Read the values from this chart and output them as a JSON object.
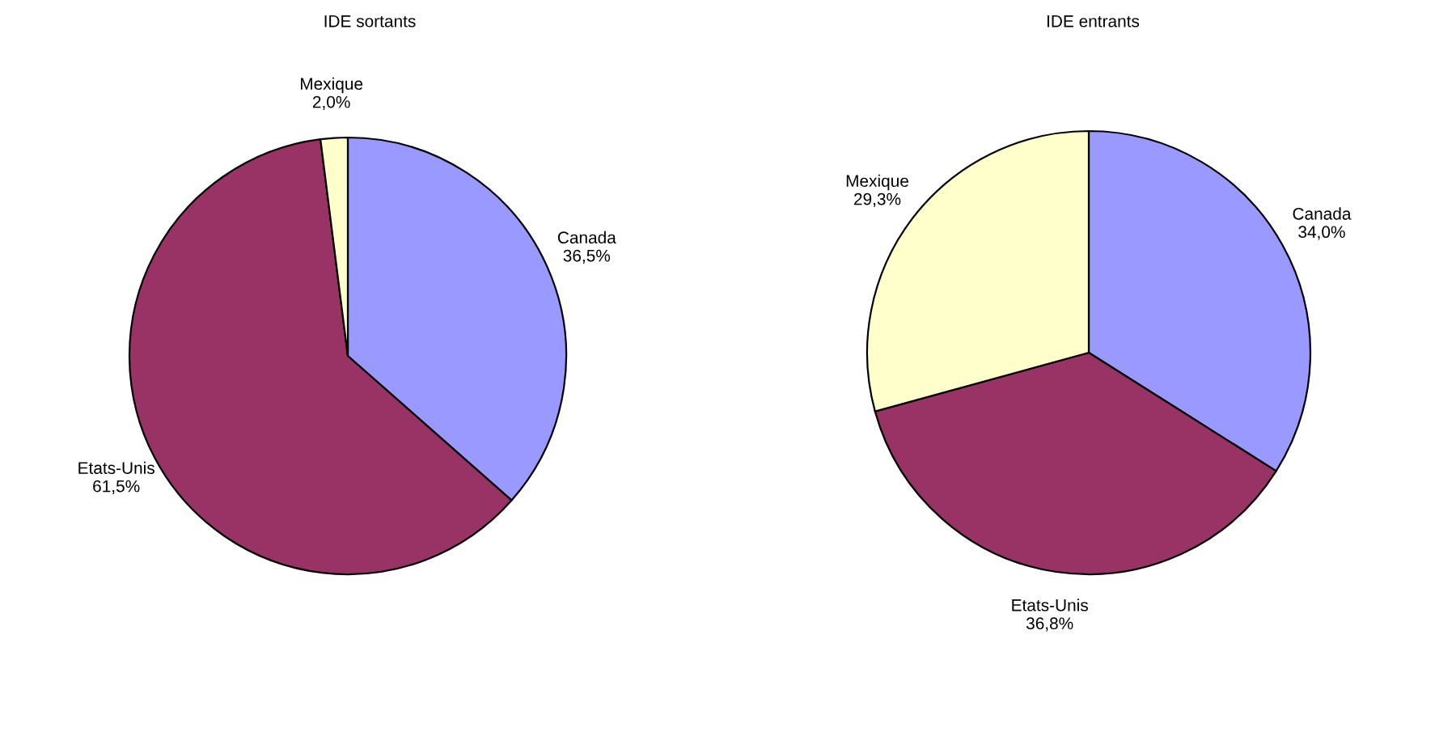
{
  "chart_data": [
    {
      "type": "pie",
      "title": "IDE sortants",
      "categories": [
        "Canada",
        "Etats-Unis",
        "Mexique"
      ],
      "values": [
        36.5,
        61.5,
        2.0
      ],
      "value_labels": [
        "36,5%",
        "61,5%",
        "2,0%"
      ],
      "colors": [
        "#9999ff",
        "#993366",
        "#ffffcc"
      ],
      "legend": false
    },
    {
      "type": "pie",
      "title": "IDE entrants",
      "categories": [
        "Canada",
        "Etats-Unis",
        "Mexique"
      ],
      "values": [
        34.0,
        36.8,
        29.3
      ],
      "value_labels": [
        "34,0%",
        "36,8%",
        "29,3%"
      ],
      "colors": [
        "#9999ff",
        "#993366",
        "#ffffcc"
      ],
      "legend": false
    }
  ]
}
